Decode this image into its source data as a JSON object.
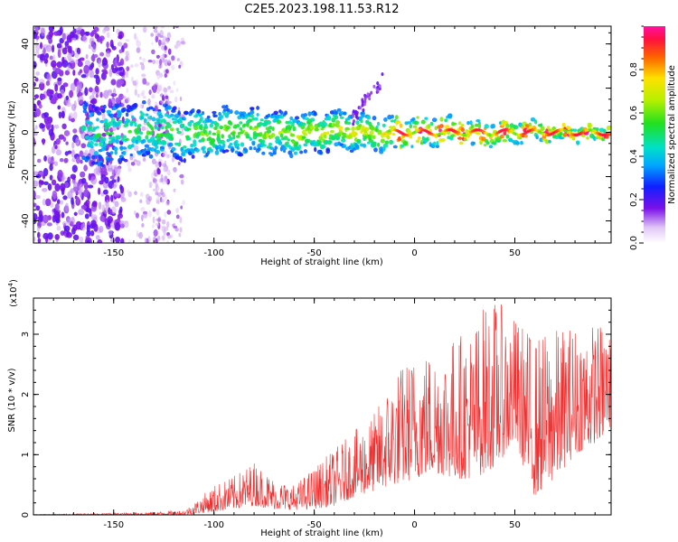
{
  "title": "C2E5.2023.198.11.53.R12",
  "colors": {
    "line": "#ee3030",
    "background": "#ffffff",
    "axis": "#000000"
  },
  "chart_data": [
    {
      "type": "heatmap",
      "title": "C2E5.2023.198.11.53.R12",
      "xlabel": "Height of straight line (km)",
      "ylabel": "Frequency (Hz)",
      "xlim": [
        -190,
        98
      ],
      "ylim": [
        -50,
        48
      ],
      "xticks": [
        -150,
        -100,
        -50,
        0,
        50
      ],
      "yticks": [
        -40,
        -20,
        0,
        20,
        40
      ],
      "grid": false,
      "description_values": {
        "ridge_center_hz": 0,
        "ridge_start_km": -160,
        "ridge_end_km": 98
      },
      "colorbar": {
        "label": "Normalized spectral amplitude",
        "range": [
          0,
          1
        ],
        "ticks": [
          0.0,
          0.2,
          0.4,
          0.6,
          0.8
        ]
      }
    },
    {
      "type": "line",
      "xlabel": "Height of straight line (km)",
      "ylabel": "SNR (10 * v/v)",
      "scale_note": "(x10",
      "scale_exp": "4",
      "scale_close": ")",
      "xlim": [
        -190,
        98
      ],
      "ylim": [
        0,
        3.6
      ],
      "xticks": [
        -150,
        -100,
        -50,
        0,
        50
      ],
      "yticks": [
        0,
        1,
        2,
        3
      ],
      "grid": false,
      "envelope": {
        "x": [
          -190,
          -150,
          -130,
          -115,
          -110,
          -100,
          -90,
          -80,
          -70,
          -60,
          -50,
          -40,
          -30,
          -20,
          -10,
          0,
          10,
          20,
          30,
          35,
          40,
          50,
          60,
          70,
          80,
          90,
          98
        ],
        "max": [
          0.01,
          0.03,
          0.05,
          0.08,
          0.2,
          0.5,
          0.65,
          0.9,
          0.6,
          0.5,
          0.8,
          1.1,
          1.4,
          1.7,
          2.4,
          2.7,
          2.8,
          3.0,
          3.2,
          3.55,
          3.6,
          3.3,
          3.0,
          3.1,
          3.2,
          3.2,
          3.2
        ],
        "min": [
          0.0,
          0.0,
          0.0,
          0.0,
          0.02,
          0.05,
          0.1,
          0.15,
          0.1,
          0.08,
          0.1,
          0.15,
          0.3,
          0.4,
          0.5,
          0.6,
          0.7,
          0.6,
          0.6,
          0.7,
          0.8,
          1.2,
          0.3,
          0.6,
          1.0,
          1.2,
          1.4
        ]
      }
    }
  ]
}
